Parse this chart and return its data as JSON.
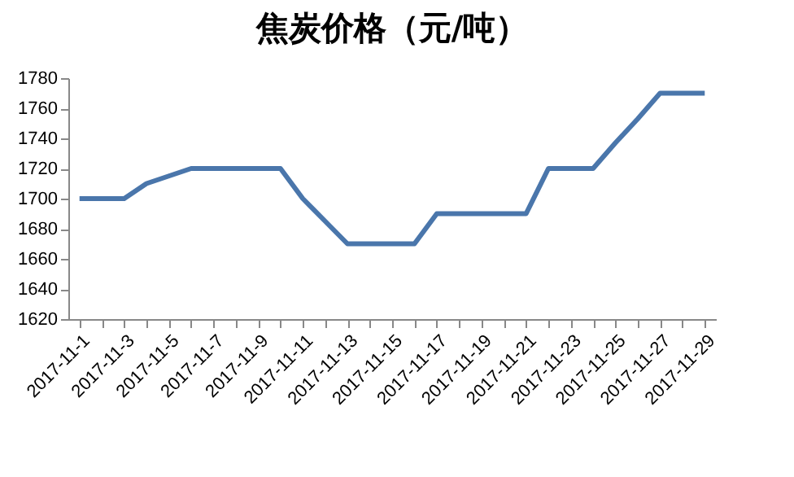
{
  "chart_data": {
    "type": "line",
    "title": "焦炭价格（元/吨）",
    "categories": [
      "2017-11-1",
      null,
      "2017-11-3",
      null,
      "2017-11-5",
      null,
      "2017-11-7",
      null,
      "2017-11-9",
      null,
      "2017-11-11",
      null,
      "2017-11-13",
      null,
      "2017-11-15",
      null,
      "2017-11-17",
      null,
      "2017-11-19",
      null,
      "2017-11-21",
      null,
      "2017-11-23",
      null,
      "2017-11-25",
      null,
      "2017-11-27",
      null,
      "2017-11-29"
    ],
    "series": [
      {
        "color": "#4a76ab",
        "values": [
          1700,
          1700,
          1700,
          1710,
          1715,
          1720,
          1720,
          1720,
          1720,
          1720,
          1700,
          1685,
          1670,
          1670,
          1670,
          1670,
          1690,
          1690,
          1690,
          1690,
          1690,
          1720,
          1720,
          1720,
          1737,
          1753,
          1770,
          1770,
          1770
        ]
      }
    ],
    "ylim": [
      1620,
      1780
    ],
    "yticks": [
      1620,
      1640,
      1660,
      1680,
      1700,
      1720,
      1740,
      1760,
      1780
    ],
    "grid": false,
    "legend": false,
    "marker": "none",
    "line_style": "solid"
  }
}
